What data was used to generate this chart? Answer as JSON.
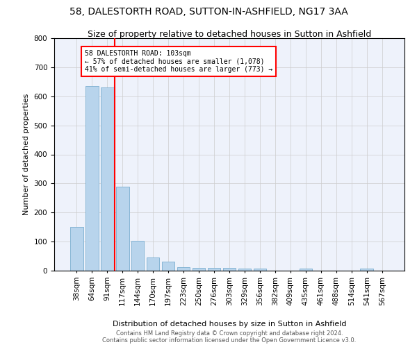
{
  "title1": "58, DALESTORTH ROAD, SUTTON-IN-ASHFIELD, NG17 3AA",
  "title2": "Size of property relative to detached houses in Sutton in Ashfield",
  "xlabel": "Distribution of detached houses by size in Sutton in Ashfield",
  "ylabel": "Number of detached properties",
  "footer": "Contains HM Land Registry data © Crown copyright and database right 2024.\nContains public sector information licensed under the Open Government Licence v3.0.",
  "categories": [
    "38sqm",
    "64sqm",
    "91sqm",
    "117sqm",
    "144sqm",
    "170sqm",
    "197sqm",
    "223sqm",
    "250sqm",
    "276sqm",
    "303sqm",
    "329sqm",
    "356sqm",
    "382sqm",
    "409sqm",
    "435sqm",
    "461sqm",
    "488sqm",
    "514sqm",
    "541sqm",
    "567sqm"
  ],
  "values": [
    150,
    635,
    630,
    290,
    103,
    46,
    30,
    12,
    10,
    10,
    10,
    8,
    8,
    0,
    0,
    8,
    0,
    0,
    0,
    8,
    0
  ],
  "bar_color": "#b8d4ec",
  "bar_edge_color": "#7aaed0",
  "vline_x": 2.5,
  "vline_color": "red",
  "annotation_line1": "58 DALESTORTH ROAD: 103sqm",
  "annotation_line2": "← 57% of detached houses are smaller (1,078)",
  "annotation_line3": "41% of semi-detached houses are larger (773) →",
  "ylim": [
    0,
    800
  ],
  "yticks": [
    0,
    100,
    200,
    300,
    400,
    500,
    600,
    700,
    800
  ],
  "bg_color": "#eef2fb",
  "grid_color": "#cccccc",
  "title1_fontsize": 10,
  "title2_fontsize": 9,
  "axis_label_fontsize": 8,
  "tick_fontsize": 7.5,
  "footer_fontsize": 6
}
